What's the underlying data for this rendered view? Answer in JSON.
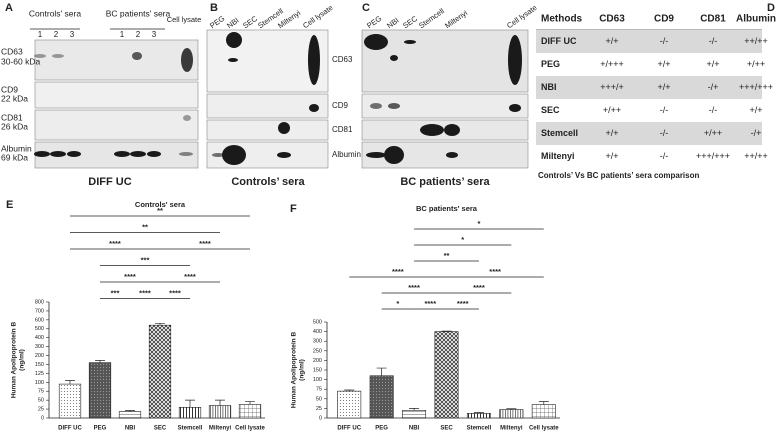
{
  "panel_a": {
    "letter": "A",
    "groups": [
      "Controls' sera",
      "BC patients' sera"
    ],
    "cell_lysate": "Cell lysate",
    "lanes": [
      "1",
      "2",
      "3",
      "1",
      "2",
      "3"
    ],
    "rows": [
      [
        "CD63",
        "30-60 kDa"
      ],
      [
        "CD9",
        "22 kDa"
      ],
      [
        "CD81",
        "26 kDa"
      ],
      [
        "Albumin",
        "69 kDa"
      ]
    ],
    "caption": "DIFF UC"
  },
  "panel_b": {
    "letter": "B",
    "lanes": [
      "PEG",
      "NBI",
      "SEC",
      "Stemcell",
      "Miltenyi",
      "Cell lysate"
    ],
    "rows": [
      "CD63",
      "CD9",
      "CD81",
      "Albumin"
    ],
    "caption": "Controls’ sera"
  },
  "panel_c": {
    "letter": "C",
    "lanes": [
      "PEG",
      "NBI",
      "SEC",
      "Stemcell",
      "Miltenyi",
      "Cell lysate"
    ],
    "caption": "BC patients’ sera"
  },
  "panel_d": {
    "letter": "D",
    "header": [
      "Methods",
      "CD63",
      "CD9",
      "CD81",
      "Albumin"
    ],
    "rows": [
      [
        "DIFF UC",
        "+/+",
        "-/-",
        "-/-",
        "++/++"
      ],
      [
        "PEG",
        "+/+++",
        "+/+",
        "+/+",
        "+/++"
      ],
      [
        "NBI",
        "+++/+",
        "+/+",
        "-/+",
        "+++/+++"
      ],
      [
        "SEC",
        "+/++",
        "-/-",
        "-/-",
        "+/+"
      ],
      [
        "Stemcell",
        "+/+",
        "-/-",
        "+/++",
        "-/+"
      ],
      [
        "Miltenyi",
        "+/+",
        "-/-",
        "+++/+++",
        "++/++"
      ]
    ],
    "caption": "Controls’ Vs BC patients’ sera comparison"
  },
  "chart_data": [
    {
      "type": "bar",
      "panel": "E",
      "title": "Controls' sera",
      "ylabel": [
        "Human Apolipoprotein B",
        "(ng/ml)"
      ],
      "categories": [
        "DIFF UC",
        "PEG",
        "NBI",
        "SEC",
        "Stemcell",
        "Miltenyi",
        "Cell lysate"
      ],
      "values": [
        95,
        160,
        18,
        540,
        30,
        35,
        38
      ],
      "errors": [
        10,
        12,
        3,
        20,
        20,
        15,
        8
      ],
      "ylim": [
        0,
        800
      ],
      "yticks": [
        0,
        25,
        50,
        75,
        100,
        125,
        150,
        200,
        300,
        400,
        500,
        600,
        700,
        800
      ],
      "significance": [
        [
          {
            "from": 0,
            "to": 6,
            "label": "**"
          }
        ],
        [
          {
            "from": 0,
            "to": 5,
            "label": "**"
          }
        ],
        [
          {
            "from": 0,
            "to": 3,
            "label": "****"
          },
          {
            "from": 3,
            "to": 6,
            "label": "****"
          }
        ],
        [
          {
            "from": 1,
            "to": 4,
            "label": "***"
          }
        ],
        [
          {
            "from": 1,
            "to": 3,
            "label": "****"
          },
          {
            "from": 3,
            "to": 5,
            "label": "****"
          }
        ],
        [
          {
            "from": 1,
            "to": 2,
            "label": "***"
          },
          {
            "from": 2,
            "to": 3,
            "label": "****"
          },
          {
            "from": 3,
            "to": 4,
            "label": "****"
          }
        ]
      ]
    },
    {
      "type": "bar",
      "panel": "F",
      "title": "BC patients' sera",
      "ylabel": [
        "Human Apolipoprotein B",
        "(ng/ml)"
      ],
      "categories": [
        "DIFF UC",
        "PEG",
        "NBI",
        "SEC",
        "Stemcell",
        "Miltenyi",
        "Cell lysate"
      ],
      "values": [
        70,
        120,
        20,
        400,
        12,
        22,
        35
      ],
      "errors": [
        3,
        40,
        5,
        5,
        2,
        2,
        8
      ],
      "ylim": [
        0,
        500
      ],
      "yticks": [
        0,
        25,
        50,
        75,
        100,
        150,
        200,
        250,
        300,
        400,
        500
      ],
      "significance": [
        [
          {
            "from": 2,
            "to": 6,
            "label": "*"
          }
        ],
        [
          {
            "from": 2,
            "to": 5,
            "label": "*"
          }
        ],
        [
          {
            "from": 2,
            "to": 4,
            "label": "**"
          }
        ],
        [
          {
            "from": 0,
            "to": 3,
            "label": "****"
          },
          {
            "from": 3,
            "to": 6,
            "label": "****"
          }
        ],
        [
          {
            "from": 1,
            "to": 3,
            "label": "****"
          },
          {
            "from": 3,
            "to": 5,
            "label": "****"
          }
        ],
        [
          {
            "from": 1,
            "to": 2,
            "label": "*"
          },
          {
            "from": 2,
            "to": 3,
            "label": "****"
          },
          {
            "from": 3,
            "to": 4,
            "label": "****"
          }
        ]
      ]
    }
  ]
}
